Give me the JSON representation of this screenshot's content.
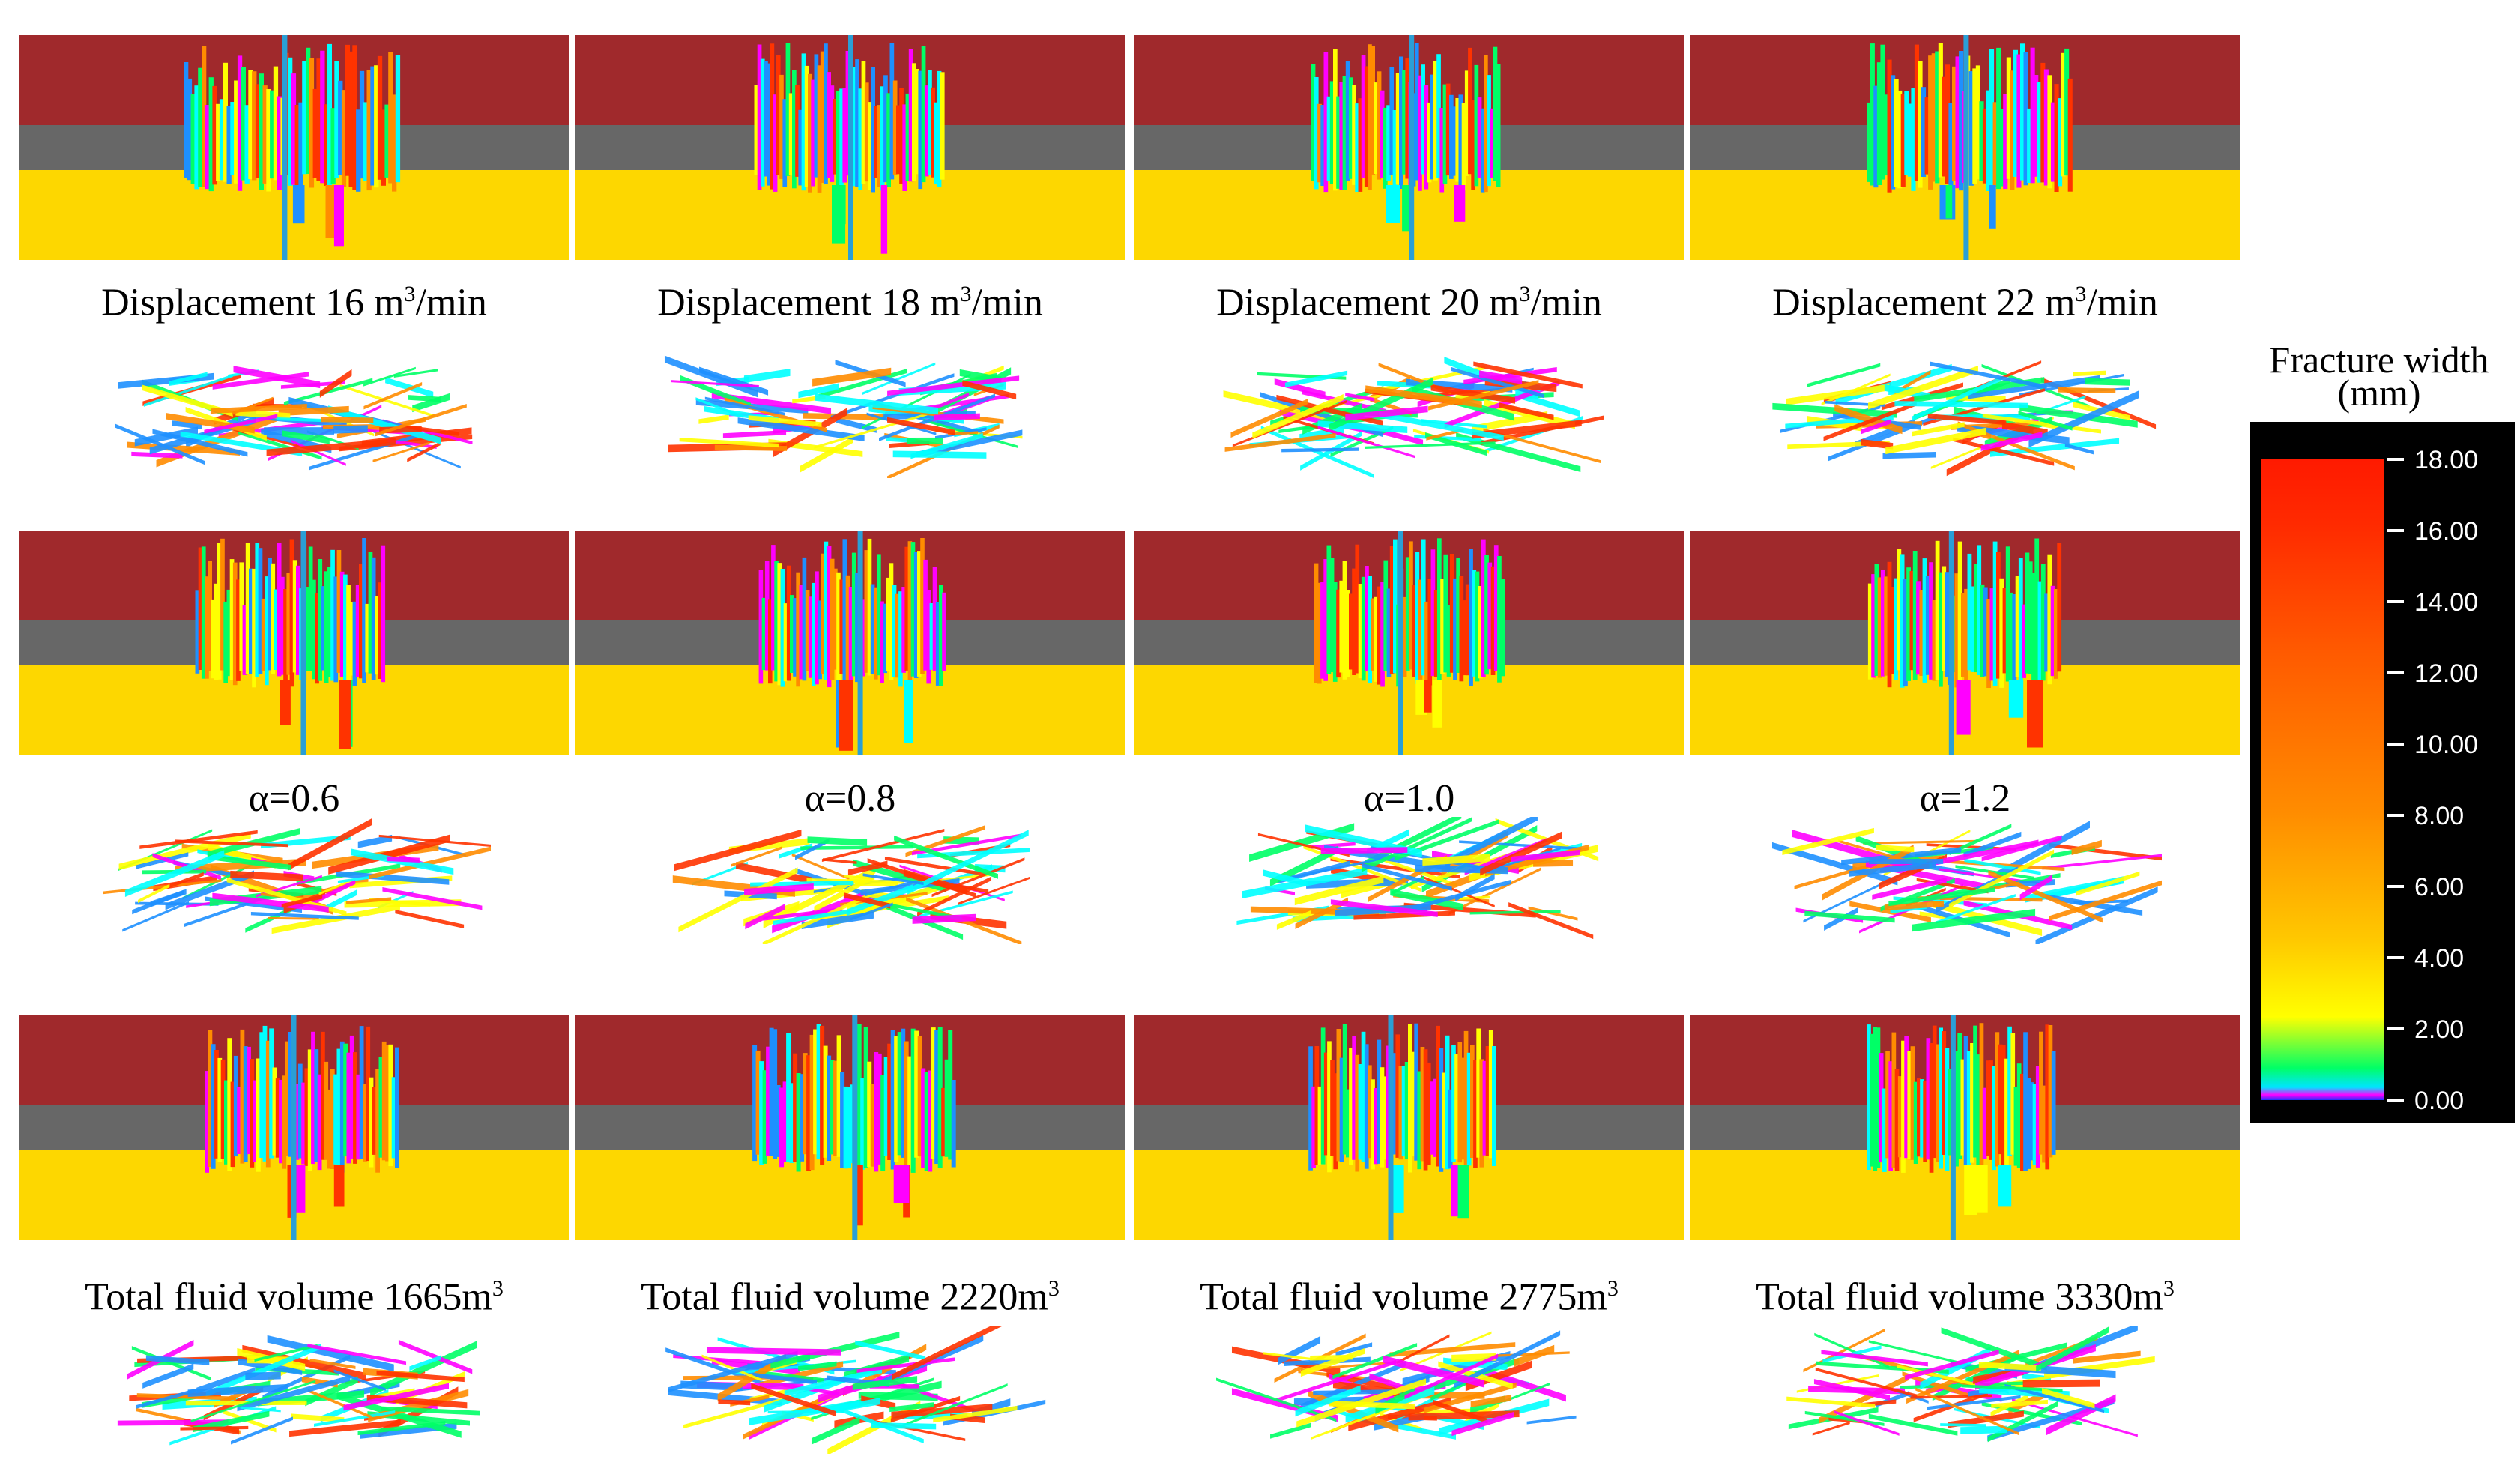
{
  "figure": {
    "rows": [
      {
        "name": "displacement",
        "captions": [
          {
            "text": "Displacement  16 m",
            "sup": "3",
            "suffix": "/min"
          },
          {
            "text": "Displacement  18 m",
            "sup": "3",
            "suffix": "/min"
          },
          {
            "text": "Displacement  20 m",
            "sup": "3",
            "suffix": "/min"
          },
          {
            "text": "Displacement  22 m",
            "sup": "3",
            "suffix": "/min"
          }
        ]
      },
      {
        "name": "alpha",
        "captions": [
          {
            "text": "α=0.6",
            "sup": "",
            "suffix": ""
          },
          {
            "text": "α=0.8",
            "sup": "",
            "suffix": ""
          },
          {
            "text": "α=1.0",
            "sup": "",
            "suffix": ""
          },
          {
            "text": "α=1.2",
            "sup": "",
            "suffix": ""
          }
        ]
      },
      {
        "name": "total-fluid-volume",
        "captions": [
          {
            "text": "Total fluid volume  1665m",
            "sup": "3",
            "suffix": ""
          },
          {
            "text": "Total fluid volume  2220m",
            "sup": "3",
            "suffix": ""
          },
          {
            "text": "Total fluid volume  2775m",
            "sup": "3",
            "suffix": ""
          },
          {
            "text": "Total fluid volume  3330m",
            "sup": "3",
            "suffix": ""
          }
        ]
      }
    ],
    "layer_colors": {
      "top": "#a0292c",
      "middle": "#676767",
      "bottom": "#fdd700"
    },
    "fracture_colors": [
      "#ff00ff",
      "#00ffff",
      "#ffff00",
      "#ff8c00",
      "#00ff66",
      "#1e90ff",
      "#ff3300"
    ]
  },
  "legend": {
    "title_line1": "Fracture width",
    "title_line2": "(mm)",
    "ticks": [
      "18.00",
      "16.00",
      "14.00",
      "12.00",
      "10.00",
      "8.00",
      "6.00",
      "4.00",
      "2.00",
      "0.00"
    ]
  }
}
